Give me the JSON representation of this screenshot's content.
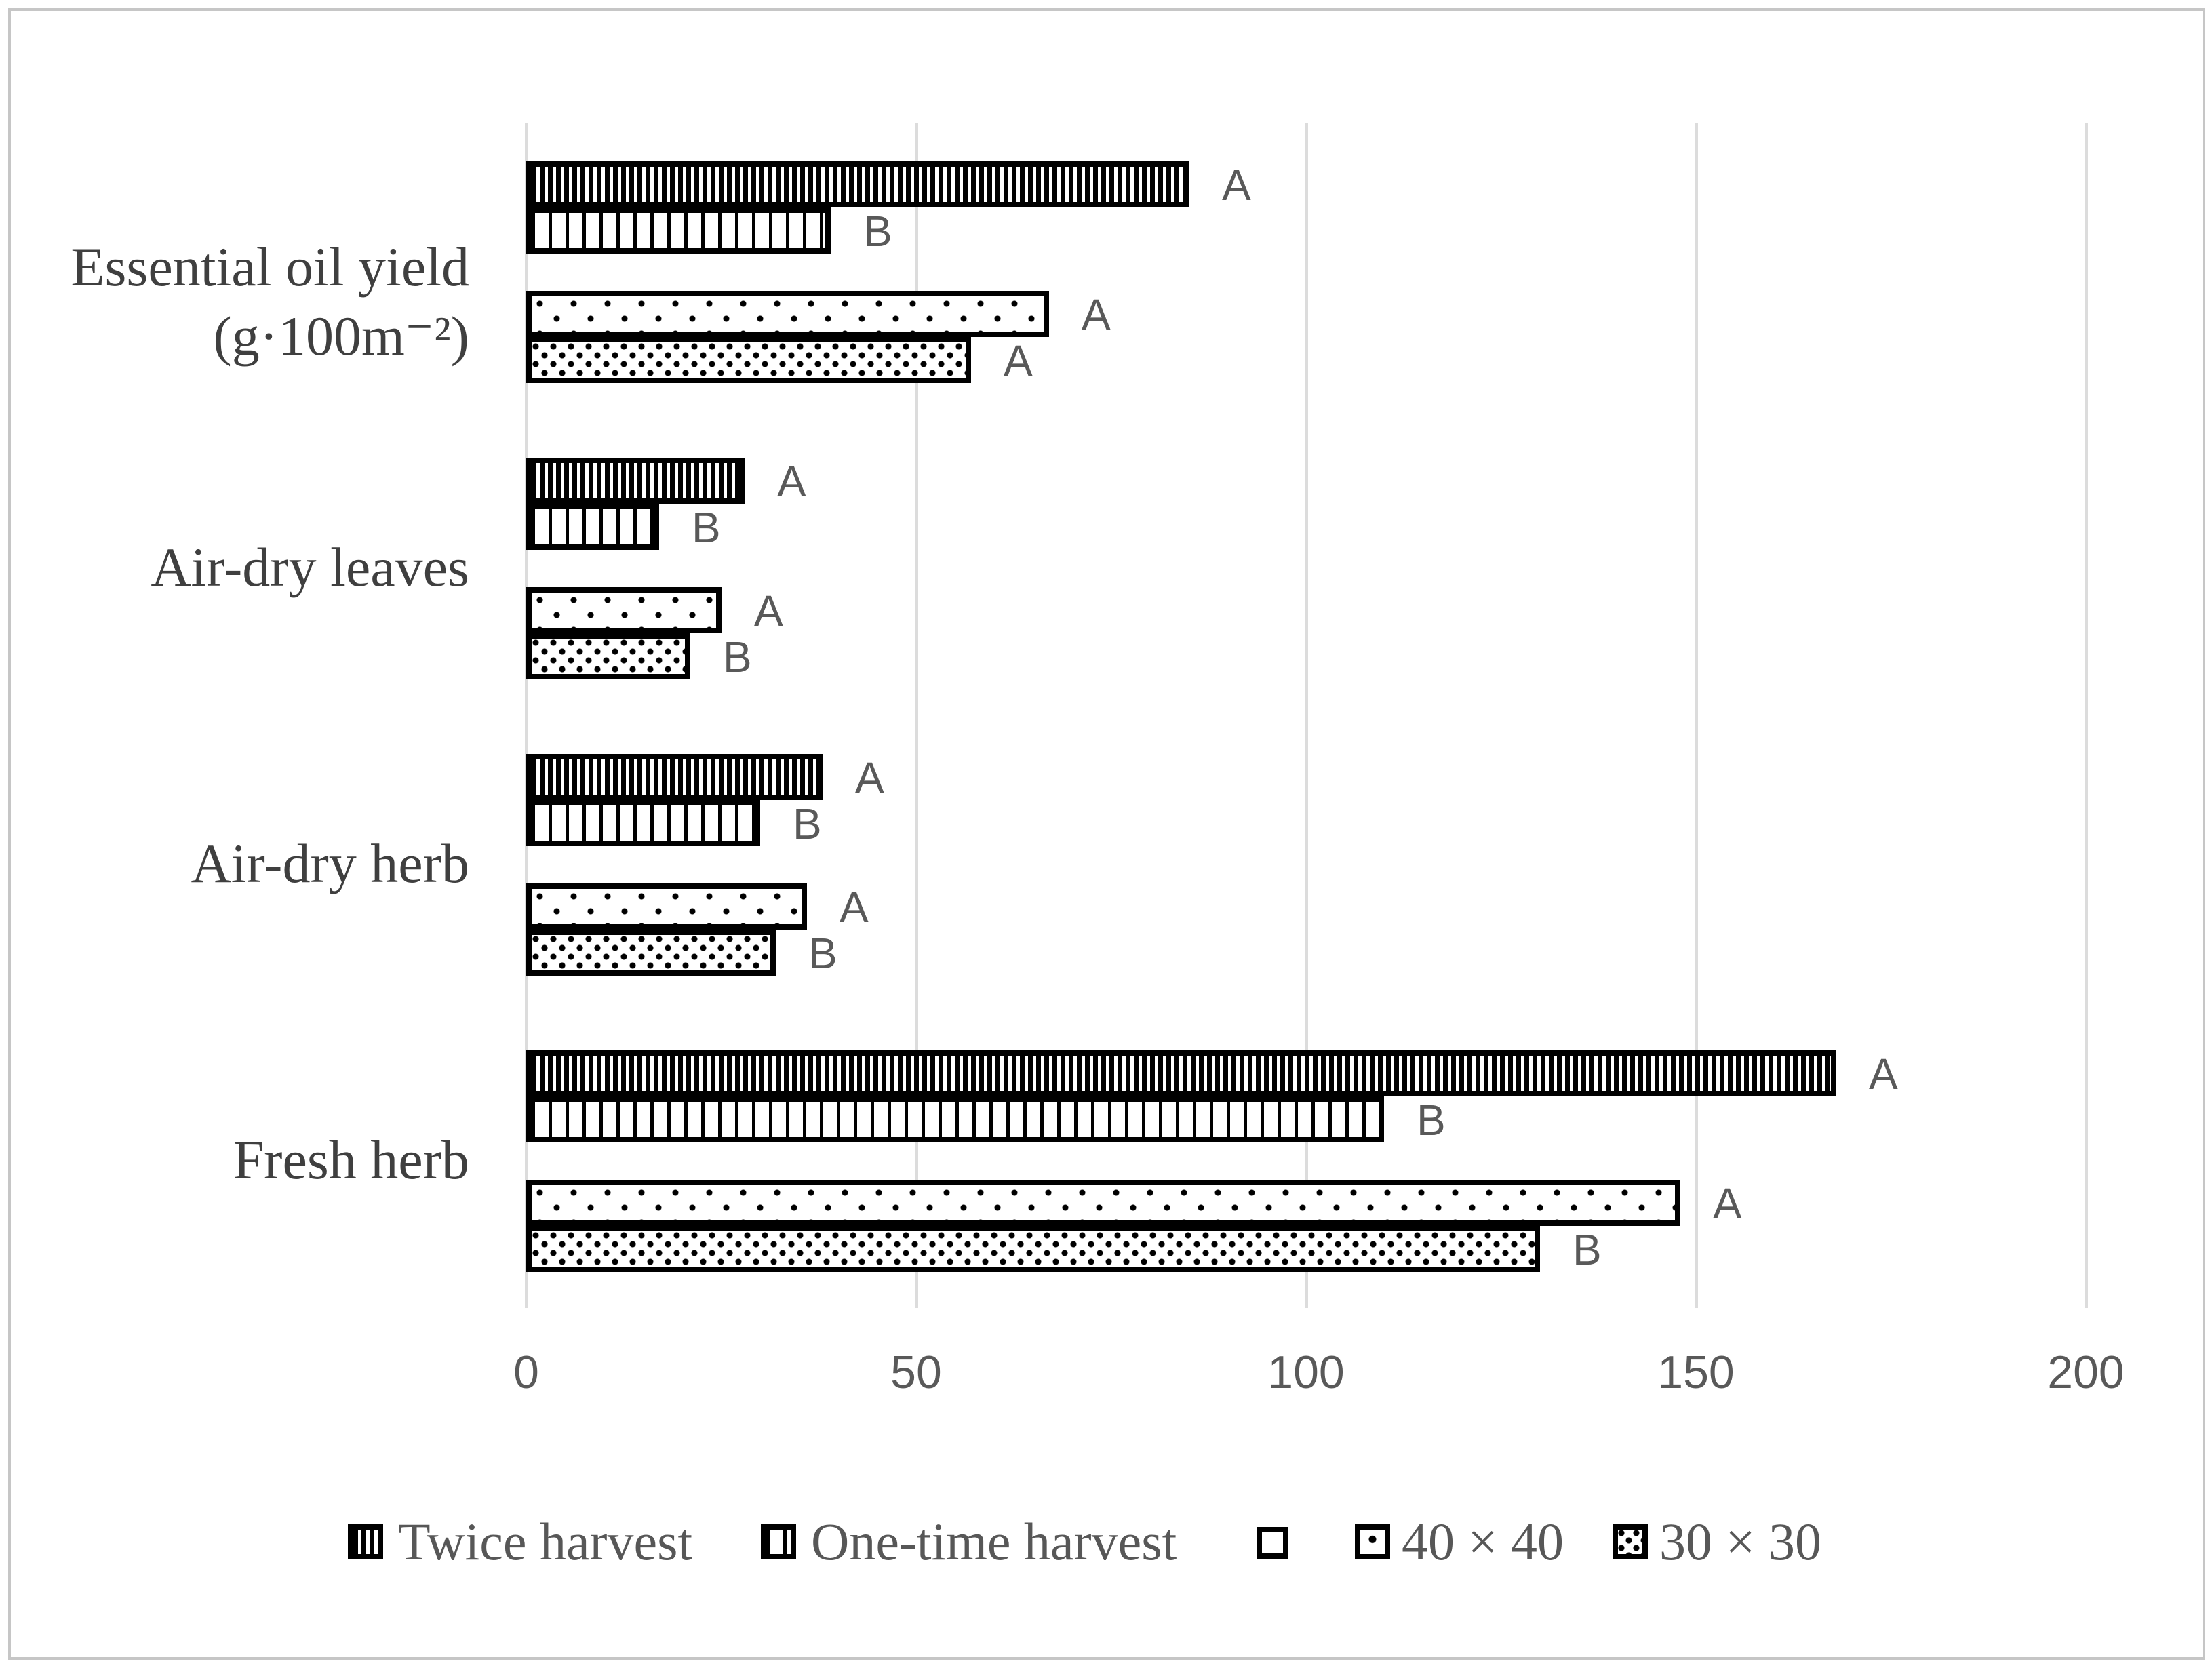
{
  "figure": {
    "background": "#ffffff",
    "border_color": "#c6c6c6"
  },
  "colors": {
    "gridline": "#dcdcdc",
    "bar_outline": "#000000",
    "text_gray": "#595959",
    "category_text": "#3f3f3f",
    "legend_text": "#575757",
    "gray_swatch": "#a9a9a9"
  },
  "chart_data": {
    "type": "bar",
    "orientation": "horizontal",
    "title": "",
    "xlabel": "",
    "ylabel": "",
    "xlim": [
      0,
      200
    ],
    "x_ticks": [
      "0",
      "50",
      "100",
      "150",
      "200"
    ],
    "grid": "vertical",
    "legend_position": "bottom",
    "categories": [
      "Essential oil yield (g·100m⁻²)",
      "Air-dry leaves",
      "Air-dry herb",
      "Fresh herb"
    ],
    "category_lines": [
      [
        "Essential oil yield",
        "(g·100m⁻²)"
      ],
      [
        "Air-dry leaves"
      ],
      [
        "Air-dry herb"
      ],
      [
        "Fresh herb"
      ]
    ],
    "series": [
      {
        "name": "Twice harvest",
        "pattern": "dense-vertical-stripes",
        "values": [
          85,
          28,
          38,
          168
        ],
        "letters": [
          "A",
          "A",
          "A",
          "A"
        ]
      },
      {
        "name": "One-time harvest",
        "pattern": "sparse-vertical-stripes",
        "values": [
          39,
          17,
          30,
          110
        ],
        "letters": [
          "B",
          "B",
          "B",
          "B"
        ]
      },
      {
        "name": "",
        "pattern": "solid-gray",
        "values": [
          null,
          null,
          null,
          null
        ],
        "letters": []
      },
      {
        "name": "40 × 40",
        "pattern": "sparse-dots",
        "values": [
          67,
          25,
          36,
          148
        ],
        "letters": [
          "A",
          "A",
          "A",
          "A"
        ]
      },
      {
        "name": "30 × 30",
        "pattern": "dense-dots",
        "values": [
          57,
          21,
          32,
          130
        ],
        "letters": [
          "A",
          "B",
          "B",
          "B"
        ]
      }
    ]
  }
}
